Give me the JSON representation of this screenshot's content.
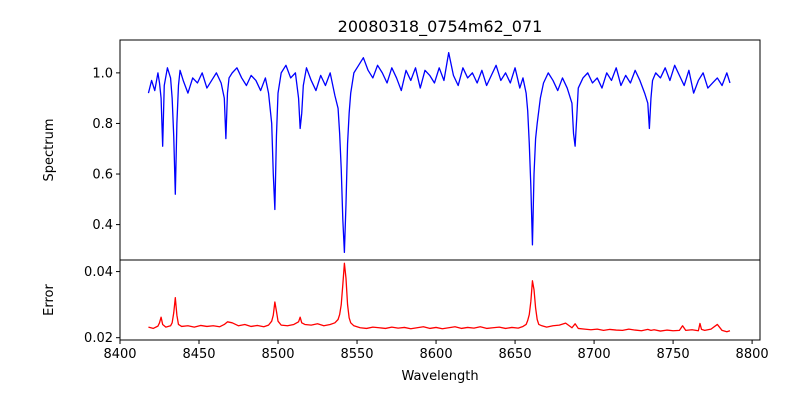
{
  "chart_data": {
    "type": "line",
    "title": "20080318_0754m62_071",
    "xlabel": "Wavelength",
    "x_ticks": [
      8400,
      8450,
      8500,
      8550,
      8600,
      8650,
      8700,
      8750,
      8800
    ],
    "xlim": [
      8400,
      8805
    ],
    "panels": [
      {
        "ylabel": "Spectrum",
        "ylim": [
          0.26,
          1.13
        ],
        "y_ticks": [
          0.4,
          0.6,
          0.8,
          1.0
        ],
        "y_tick_labels": [
          "0.4",
          "0.6",
          "0.8",
          "1.0"
        ],
        "series": [
          {
            "color": "#0000ff",
            "x": [
              8418,
              8420,
              8422,
              8424,
              8425,
              8426,
              8427,
              8428,
              8430,
              8432,
              8433,
              8434,
              8435,
              8436,
              8437,
              8438,
              8440,
              8443,
              8446,
              8449,
              8452,
              8455,
              8458,
              8461,
              8464,
              8466,
              8467,
              8468,
              8469,
              8471,
              8474,
              8477,
              8480,
              8483,
              8486,
              8489,
              8492,
              8494,
              8496,
              8497,
              8498,
              8499,
              8500,
              8502,
              8505,
              8508,
              8511,
              8513,
              8514,
              8515,
              8516,
              8518,
              8521,
              8524,
              8527,
              8530,
              8533,
              8536,
              8538,
              8539,
              8540,
              8541,
              8542,
              8543,
              8544,
              8545,
              8546,
              8548,
              8551,
              8554,
              8557,
              8560,
              8563,
              8566,
              8569,
              8572,
              8575,
              8578,
              8581,
              8584,
              8587,
              8590,
              8593,
              8596,
              8599,
              8602,
              8605,
              8608,
              8611,
              8614,
              8617,
              8620,
              8623,
              8626,
              8629,
              8632,
              8635,
              8638,
              8641,
              8644,
              8647,
              8650,
              8653,
              8655,
              8657,
              8658,
              8659,
              8660,
              8661,
              8662,
              8663,
              8664,
              8665,
              8666,
              8668,
              8671,
              8674,
              8677,
              8680,
              8683,
              8686,
              8687,
              8688,
              8689,
              8690,
              8693,
              8696,
              8699,
              8702,
              8705,
              8708,
              8711,
              8714,
              8717,
              8720,
              8723,
              8726,
              8729,
              8732,
              8734,
              8735,
              8736,
              8737,
              8739,
              8742,
              8745,
              8748,
              8751,
              8754,
              8757,
              8760,
              8763,
              8766,
              8769,
              8772,
              8775,
              8778,
              8781,
              8784,
              8786
            ],
            "y": [
              0.92,
              0.97,
              0.93,
              1.0,
              0.96,
              0.9,
              0.71,
              0.95,
              1.02,
              0.98,
              0.9,
              0.75,
              0.52,
              0.8,
              0.95,
              1.01,
              0.97,
              0.92,
              0.98,
              0.96,
              1.0,
              0.94,
              0.97,
              1.0,
              0.96,
              0.9,
              0.74,
              0.92,
              0.98,
              1.0,
              1.02,
              0.98,
              0.95,
              0.99,
              0.97,
              0.93,
              0.98,
              0.92,
              0.8,
              0.6,
              0.46,
              0.75,
              0.92,
              1.0,
              1.03,
              0.98,
              1.0,
              0.9,
              0.78,
              0.84,
              0.95,
              1.02,
              0.97,
              0.93,
              0.99,
              0.95,
              1.0,
              0.91,
              0.86,
              0.76,
              0.62,
              0.42,
              0.29,
              0.48,
              0.72,
              0.84,
              0.92,
              1.0,
              1.03,
              1.06,
              1.01,
              0.98,
              1.03,
              1.0,
              0.96,
              1.02,
              0.98,
              0.93,
              1.01,
              0.97,
              1.02,
              0.94,
              1.01,
              0.99,
              0.96,
              1.02,
              0.97,
              1.08,
              0.99,
              0.95,
              1.02,
              0.98,
              1.0,
              0.96,
              1.01,
              0.95,
              0.99,
              1.03,
              0.97,
              1.0,
              0.96,
              1.02,
              0.94,
              0.98,
              0.92,
              0.85,
              0.72,
              0.55,
              0.32,
              0.6,
              0.74,
              0.8,
              0.85,
              0.9,
              0.96,
              1.0,
              0.97,
              0.93,
              0.98,
              0.94,
              0.88,
              0.76,
              0.71,
              0.82,
              0.94,
              0.98,
              1.0,
              0.96,
              0.98,
              0.94,
              1.0,
              0.97,
              1.02,
              0.95,
              0.99,
              0.96,
              1.01,
              0.97,
              0.92,
              0.88,
              0.78,
              0.9,
              0.97,
              1.0,
              0.98,
              1.02,
              0.97,
              1.03,
              0.99,
              0.95,
              1.01,
              0.92,
              0.97,
              1.0,
              0.94,
              0.96,
              0.98,
              0.95,
              1.0,
              0.96
            ]
          }
        ]
      },
      {
        "ylabel": "Error",
        "ylim": [
          0.0193,
          0.0435
        ],
        "y_ticks": [
          0.02,
          0.04
        ],
        "y_tick_labels": [
          "0.02",
          "0.04"
        ],
        "series": [
          {
            "color": "#ff0000",
            "x": [
              8418,
              8421,
              8424,
              8425,
              8426,
              8427,
              8429,
              8432,
              8433,
              8434,
              8435,
              8436,
              8437,
              8439,
              8443,
              8447,
              8451,
              8455,
              8459,
              8463,
              8466,
              8468,
              8471,
              8475,
              8479,
              8483,
              8487,
              8491,
              8494,
              8496,
              8497,
              8498,
              8499,
              8500,
              8502,
              8506,
              8510,
              8513,
              8514,
              8515,
              8517,
              8521,
              8525,
              8529,
              8533,
              8536,
              8538,
              8539,
              8540,
              8541,
              8542,
              8543,
              8544,
              8545,
              8546,
              8548,
              8552,
              8556,
              8560,
              8564,
              8568,
              8572,
              8576,
              8580,
              8584,
              8588,
              8592,
              8596,
              8600,
              8604,
              8608,
              8612,
              8616,
              8620,
              8624,
              8628,
              8632,
              8636,
              8640,
              8644,
              8648,
              8652,
              8655,
              8657,
              8658,
              8659,
              8660,
              8661,
              8662,
              8663,
              8664,
              8665,
              8667,
              8670,
              8674,
              8678,
              8682,
              8686,
              8688,
              8690,
              8694,
              8698,
              8702,
              8706,
              8710,
              8714,
              8718,
              8722,
              8726,
              8730,
              8734,
              8736,
              8738,
              8742,
              8746,
              8750,
              8754,
              8756,
              8758,
              8762,
              8766,
              8767,
              8768,
              8770,
              8774,
              8778,
              8781,
              8784,
              8786
            ],
            "y": [
              0.0232,
              0.0228,
              0.0235,
              0.0245,
              0.0262,
              0.024,
              0.0232,
              0.0236,
              0.0245,
              0.0275,
              0.0321,
              0.0268,
              0.024,
              0.0234,
              0.0236,
              0.0232,
              0.0237,
              0.0234,
              0.0236,
              0.0233,
              0.024,
              0.0248,
              0.0245,
              0.0236,
              0.024,
              0.0234,
              0.0237,
              0.0233,
              0.0238,
              0.025,
              0.0268,
              0.0308,
              0.028,
              0.025,
              0.0238,
              0.0236,
              0.024,
              0.0248,
              0.0262,
              0.0245,
              0.024,
              0.0238,
              0.0242,
              0.0236,
              0.024,
              0.0245,
              0.0255,
              0.027,
              0.03,
              0.036,
              0.0425,
              0.038,
              0.03,
              0.026,
              0.0245,
              0.0236,
              0.023,
              0.0228,
              0.0232,
              0.023,
              0.0228,
              0.0232,
              0.0229,
              0.0231,
              0.0227,
              0.023,
              0.0233,
              0.0228,
              0.0231,
              0.0227,
              0.023,
              0.0233,
              0.0228,
              0.0231,
              0.0229,
              0.0233,
              0.0228,
              0.023,
              0.0232,
              0.0228,
              0.0231,
              0.0229,
              0.0234,
              0.024,
              0.0252,
              0.027,
              0.031,
              0.0372,
              0.0345,
              0.029,
              0.0255,
              0.024,
              0.0236,
              0.0232,
              0.0236,
              0.0238,
              0.0244,
              0.023,
              0.0242,
              0.0228,
              0.0226,
              0.0224,
              0.0226,
              0.0222,
              0.0225,
              0.0223,
              0.0222,
              0.0226,
              0.0223,
              0.0221,
              0.0225,
              0.0222,
              0.0224,
              0.022,
              0.0223,
              0.0221,
              0.0222,
              0.0236,
              0.0222,
              0.0224,
              0.0221,
              0.0243,
              0.0225,
              0.0222,
              0.0226,
              0.024,
              0.0222,
              0.0218,
              0.0221
            ]
          }
        ]
      }
    ]
  }
}
